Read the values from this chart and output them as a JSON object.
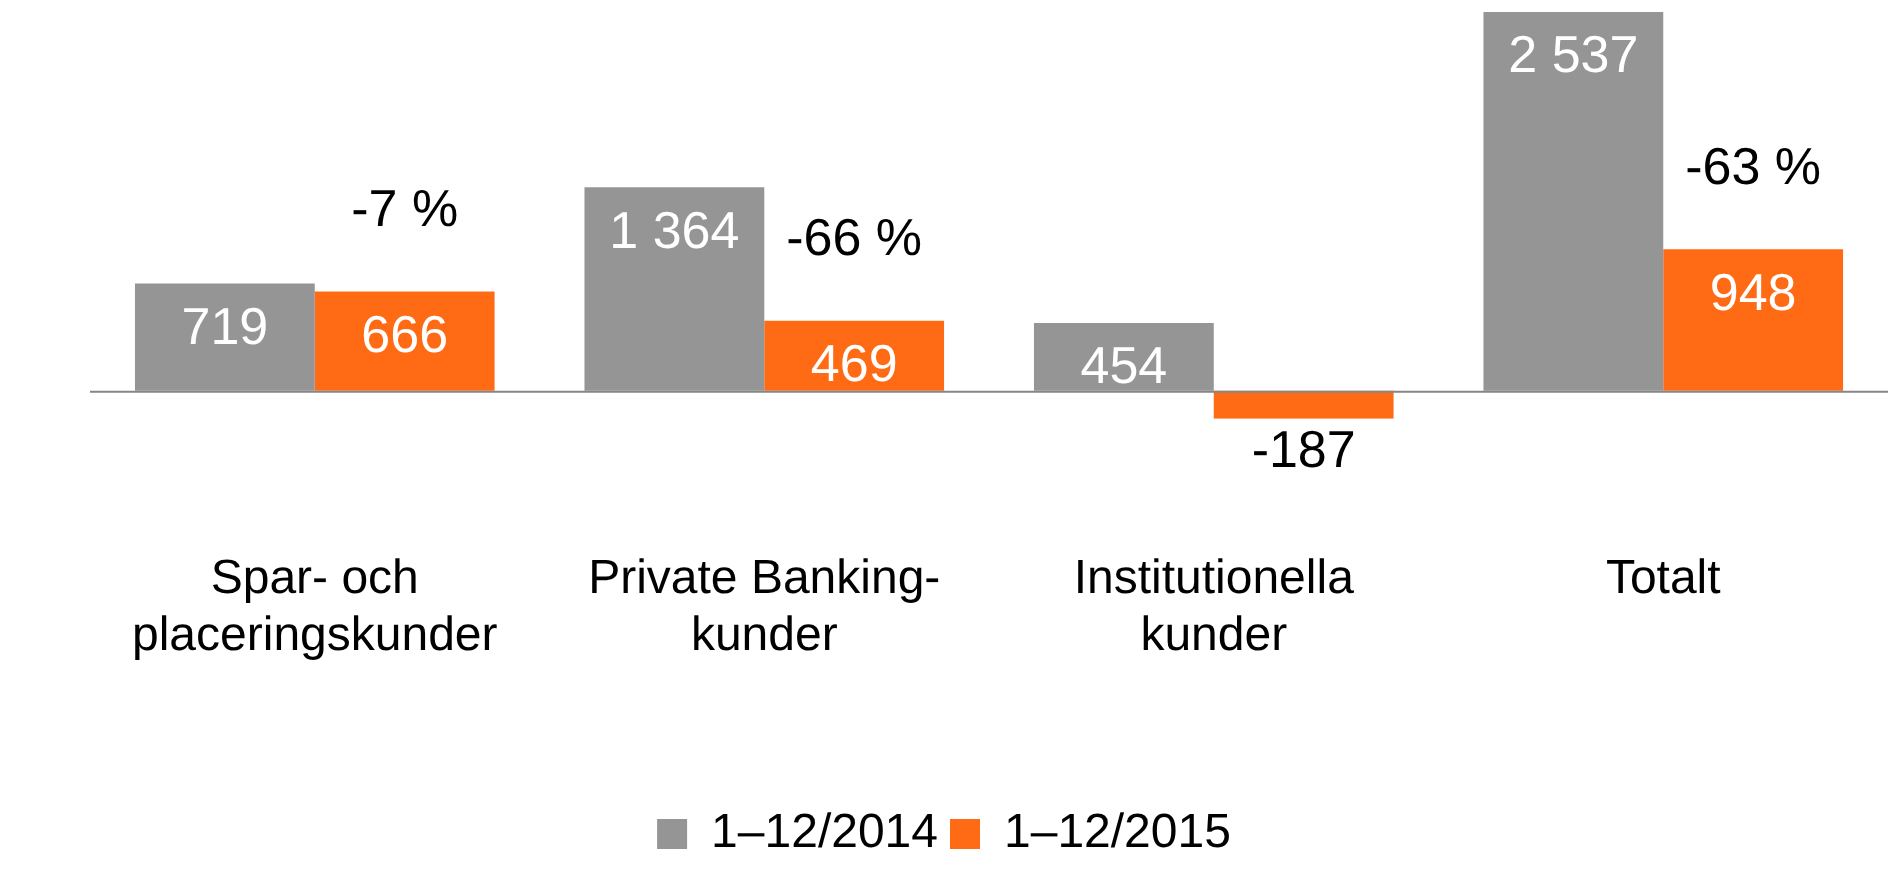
{
  "chart_data": {
    "type": "bar",
    "categories": [
      "Spar- och placeringskunder",
      "Private Banking-kunder",
      "Institutionella kunder",
      "Totalt"
    ],
    "series": [
      {
        "name": "1–12/2014",
        "color": "#959595",
        "values": [
          719,
          1364,
          454,
          2537
        ]
      },
      {
        "name": "1–12/2015",
        "color": "#ff6b14",
        "values": [
          666,
          469,
          -187,
          948
        ]
      }
    ],
    "data_labels": true,
    "legend": "bottom",
    "grid": false,
    "annotations": [
      {
        "text": "-7 %",
        "x": "Spar- och placeringskunder",
        "y": 666
      },
      {
        "text": "-66 %",
        "x": "Private Banking-kunder",
        "y": 469
      },
      {
        "text": "-63 %",
        "x": "Totalt",
        "y": 948
      }
    ]
  }
}
